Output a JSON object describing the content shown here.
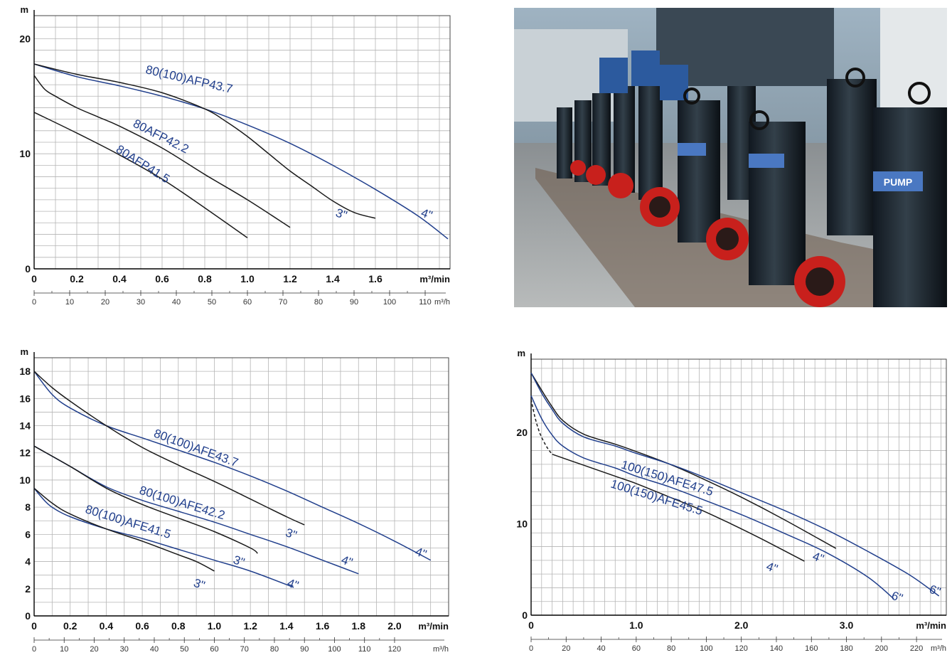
{
  "colors": {
    "black_curve": "#1a1a1a",
    "blue_curve": "#213f8c",
    "grid": "#b5b5b5",
    "frame": "#444444"
  },
  "photo": {
    "description_icon": "pump-photo-icon",
    "brand_label": "PUMP"
  },
  "chart_data": [
    {
      "id": "afp",
      "type": "line",
      "ylabel": "m",
      "xlabel": "m³/min",
      "x2label": "m³/h",
      "xlim": [
        0,
        1.95
      ],
      "ylim": [
        0,
        22
      ],
      "x_tick_labels": [
        "0",
        "0.2",
        "0.4",
        "0.6",
        "0.8",
        "1.0",
        "1.2",
        "1.4",
        "1.6"
      ],
      "x_ticks": [
        0,
        0.2,
        0.4,
        0.6,
        0.8,
        1.0,
        1.2,
        1.4,
        1.6
      ],
      "y_tick_labels": [
        "0",
        "10",
        "20"
      ],
      "y_ticks": [
        0,
        10,
        20
      ],
      "x2_tick_labels": [
        "0",
        "10",
        "20",
        "30",
        "40",
        "50",
        "60",
        "70",
        "80",
        "90",
        "100",
        "110"
      ],
      "grid": true,
      "series": [
        {
          "color": "blue",
          "x": [
            0,
            0.2,
            0.4,
            0.6,
            0.8,
            1.0,
            1.2,
            1.4,
            1.6,
            1.8,
            1.94
          ],
          "y": [
            17.8,
            16.7,
            15.9,
            15.0,
            13.9,
            12.5,
            10.9,
            9.0,
            6.9,
            4.6,
            2.6
          ]
        },
        {
          "color": "black",
          "x": [
            0,
            0.2,
            0.4,
            0.6,
            0.8,
            0.9,
            1.0,
            1.1,
            1.2,
            1.3,
            1.4,
            1.5,
            1.6
          ],
          "y": [
            17.8,
            16.9,
            16.2,
            15.3,
            13.9,
            12.8,
            11.5,
            10.0,
            8.5,
            7.2,
            5.9,
            4.9,
            4.4
          ]
        },
        {
          "color": "black",
          "x": [
            0,
            0.05,
            0.1,
            0.2,
            0.3,
            0.4,
            0.6,
            0.8,
            1.0,
            1.2
          ],
          "y": [
            16.8,
            15.6,
            15.0,
            14.0,
            13.2,
            12.4,
            10.5,
            8.2,
            6.0,
            3.6
          ]
        },
        {
          "color": "black",
          "x": [
            0,
            0.2,
            0.4,
            0.6,
            0.8,
            1.0
          ],
          "y": [
            13.6,
            11.8,
            9.9,
            7.8,
            5.3,
            2.7
          ]
        }
      ],
      "labels": [
        {
          "text": "80(100)AFP43.7",
          "x": 0.52,
          "y": 17.0,
          "angle": 13
        },
        {
          "text": "80AFP42.2",
          "x": 0.46,
          "y": 12.4,
          "angle": 27
        },
        {
          "text": "80AFP41.5",
          "x": 0.38,
          "y": 10.2,
          "angle": 32
        },
        {
          "text": "3\"",
          "x": 1.41,
          "y": 4.6,
          "angle": 20
        },
        {
          "text": "4\"",
          "x": 1.81,
          "y": 4.6,
          "angle": 20
        }
      ]
    },
    {
      "id": "afe4",
      "type": "line",
      "ylabel": "m",
      "xlabel": "m³/min",
      "x2label": "m³/h",
      "xlim": [
        0,
        2.3
      ],
      "ylim": [
        0,
        19
      ],
      "x_tick_labels": [
        "0",
        "0.2",
        "0.4",
        "0.6",
        "0.8",
        "1.0",
        "1.2",
        "1.4",
        "1.6",
        "1.8",
        "2.0"
      ],
      "x_ticks": [
        0,
        0.2,
        0.4,
        0.6,
        0.8,
        1.0,
        1.2,
        1.4,
        1.6,
        1.8,
        2.0
      ],
      "y_tick_labels": [
        "0",
        "2",
        "4",
        "6",
        "8",
        "10",
        "12",
        "14",
        "16",
        "18"
      ],
      "y_ticks": [
        0,
        2,
        4,
        6,
        8,
        10,
        12,
        14,
        16,
        18
      ],
      "x2_tick_labels": [
        "0",
        "10",
        "20",
        "30",
        "40",
        "50",
        "60",
        "70",
        "80",
        "90",
        "100",
        "110",
        "120"
      ],
      "grid": true,
      "series": [
        {
          "color": "blue",
          "x": [
            0,
            0.1,
            0.2,
            0.4,
            0.6,
            0.8,
            1.0,
            1.2,
            1.4,
            1.6,
            1.8,
            2.0,
            2.2
          ],
          "y": [
            18.0,
            16.3,
            15.3,
            14.0,
            13.1,
            12.2,
            11.3,
            10.3,
            9.2,
            8.0,
            6.8,
            5.5,
            4.1
          ]
        },
        {
          "color": "black",
          "x": [
            0,
            0.1,
            0.2,
            0.4,
            0.6,
            0.8,
            1.0,
            1.2,
            1.4,
            1.5
          ],
          "y": [
            18.0,
            16.8,
            15.8,
            14.0,
            12.4,
            11.1,
            9.9,
            8.6,
            7.3,
            6.7
          ]
        },
        {
          "color": "blue",
          "x": [
            0,
            0.2,
            0.4,
            0.6,
            0.8,
            1.0,
            1.2,
            1.4,
            1.6,
            1.8
          ],
          "y": [
            12.5,
            11.0,
            9.5,
            8.5,
            7.7,
            6.9,
            6.0,
            5.1,
            4.1,
            3.1
          ]
        },
        {
          "color": "black",
          "x": [
            0,
            0.2,
            0.4,
            0.6,
            0.8,
            1.0,
            1.2,
            1.24
          ],
          "y": [
            12.5,
            11.0,
            9.4,
            8.2,
            7.2,
            6.2,
            5.0,
            4.6
          ]
        },
        {
          "color": "blue",
          "x": [
            0,
            0.05,
            0.1,
            0.2,
            0.4,
            0.6,
            0.8,
            1.0,
            1.2,
            1.44
          ],
          "y": [
            9.4,
            8.6,
            8.0,
            7.3,
            6.4,
            5.7,
            4.9,
            4.1,
            3.3,
            2.1
          ]
        },
        {
          "color": "black",
          "x": [
            0,
            0.1,
            0.2,
            0.4,
            0.6,
            0.8,
            0.9,
            1.0
          ],
          "y": [
            9.4,
            8.3,
            7.5,
            6.4,
            5.5,
            4.5,
            4.0,
            3.3
          ]
        }
      ],
      "labels": [
        {
          "text": "80(100)AFE43.7",
          "x": 0.66,
          "y": 13.2,
          "angle": 20
        },
        {
          "text": "80(100)AFE42.2",
          "x": 0.58,
          "y": 9.0,
          "angle": 17
        },
        {
          "text": "80(100)AFE41.5",
          "x": 0.28,
          "y": 7.6,
          "angle": 17
        },
        {
          "text": "3\"",
          "x": 1.39,
          "y": 5.9,
          "angle": 20
        },
        {
          "text": "3\"",
          "x": 1.1,
          "y": 3.9,
          "angle": 20
        },
        {
          "text": "3\"",
          "x": 0.88,
          "y": 2.2,
          "angle": 20
        },
        {
          "text": "4\"",
          "x": 1.7,
          "y": 3.9,
          "angle": 20
        },
        {
          "text": "4\"",
          "x": 1.4,
          "y": 2.2,
          "angle": 20
        },
        {
          "text": "4\"",
          "x": 2.11,
          "y": 4.5,
          "angle": 20
        }
      ]
    },
    {
      "id": "afe47",
      "type": "line",
      "ylabel": "m",
      "xlabel": "m³/min",
      "x2label": "m³/h",
      "xlim": [
        0,
        3.95
      ],
      "ylim": [
        0,
        28
      ],
      "x_tick_labels": [
        "0",
        "1.0",
        "2.0",
        "3.0"
      ],
      "x_ticks": [
        0,
        1.0,
        2.0,
        3.0
      ],
      "y_tick_labels": [
        "0",
        "10",
        "20"
      ],
      "y_ticks": [
        0,
        10,
        20
      ],
      "x2_tick_labels": [
        "0",
        "20",
        "40",
        "60",
        "80",
        "100",
        "120",
        "140",
        "160",
        "180",
        "200",
        "220"
      ],
      "grid": true,
      "series": [
        {
          "color": "black",
          "x": [
            0,
            0.1,
            0.2,
            0.3,
            0.5,
            0.8,
            1.0,
            1.3,
            1.6,
            2.0,
            2.4,
            2.9
          ],
          "y": [
            26.5,
            24.6,
            22.8,
            21.3,
            19.8,
            18.7,
            17.9,
            16.6,
            15.1,
            12.9,
            10.5,
            7.3
          ]
        },
        {
          "color": "blue",
          "x": [
            0,
            0.1,
            0.2,
            0.3,
            0.5,
            0.8,
            1.0,
            1.3,
            1.6,
            2.0,
            2.4,
            2.8,
            3.2,
            3.6,
            3.88
          ],
          "y": [
            26.5,
            24.3,
            22.5,
            21.0,
            19.5,
            18.5,
            17.7,
            16.6,
            15.3,
            13.4,
            11.5,
            9.4,
            7.0,
            4.4,
            2.1
          ]
        },
        {
          "color": "blue",
          "x": [
            0,
            0.1,
            0.2,
            0.3,
            0.5,
            0.8,
            1.0,
            1.3,
            1.6,
            2.0,
            2.4,
            2.8,
            3.2,
            3.45
          ],
          "y": [
            24.0,
            21.5,
            19.7,
            18.5,
            17.2,
            16.1,
            15.2,
            14.1,
            12.8,
            11.0,
            9.0,
            6.9,
            4.2,
            1.8
          ]
        },
        {
          "color": "black",
          "x": [
            0.2,
            0.5,
            0.8,
            1.0,
            1.3,
            1.6,
            1.9,
            2.2,
            2.6
          ],
          "y": [
            17.6,
            16.4,
            15.2,
            14.4,
            13.0,
            11.6,
            10.0,
            8.3,
            5.9
          ]
        },
        {
          "color": "black",
          "dashed": true,
          "x": [
            0,
            0.04,
            0.08,
            0.12,
            0.16,
            0.2
          ],
          "y": [
            23.6,
            21.5,
            20.0,
            19.0,
            18.2,
            17.6
          ]
        }
      ],
      "labels": [
        {
          "text": "100(150)AFE47.5",
          "x": 0.85,
          "y": 16.1,
          "angle": 17
        },
        {
          "text": "100(150)AFE45.5",
          "x": 0.75,
          "y": 14.0,
          "angle": 17
        },
        {
          "text": "4\"",
          "x": 2.67,
          "y": 6.1,
          "angle": 20
        },
        {
          "text": "4\"",
          "x": 2.23,
          "y": 5.0,
          "angle": 20
        },
        {
          "text": "6\"",
          "x": 3.42,
          "y": 1.8,
          "angle": 20
        },
        {
          "text": "6\"",
          "x": 3.78,
          "y": 2.5,
          "angle": 20
        }
      ]
    }
  ]
}
